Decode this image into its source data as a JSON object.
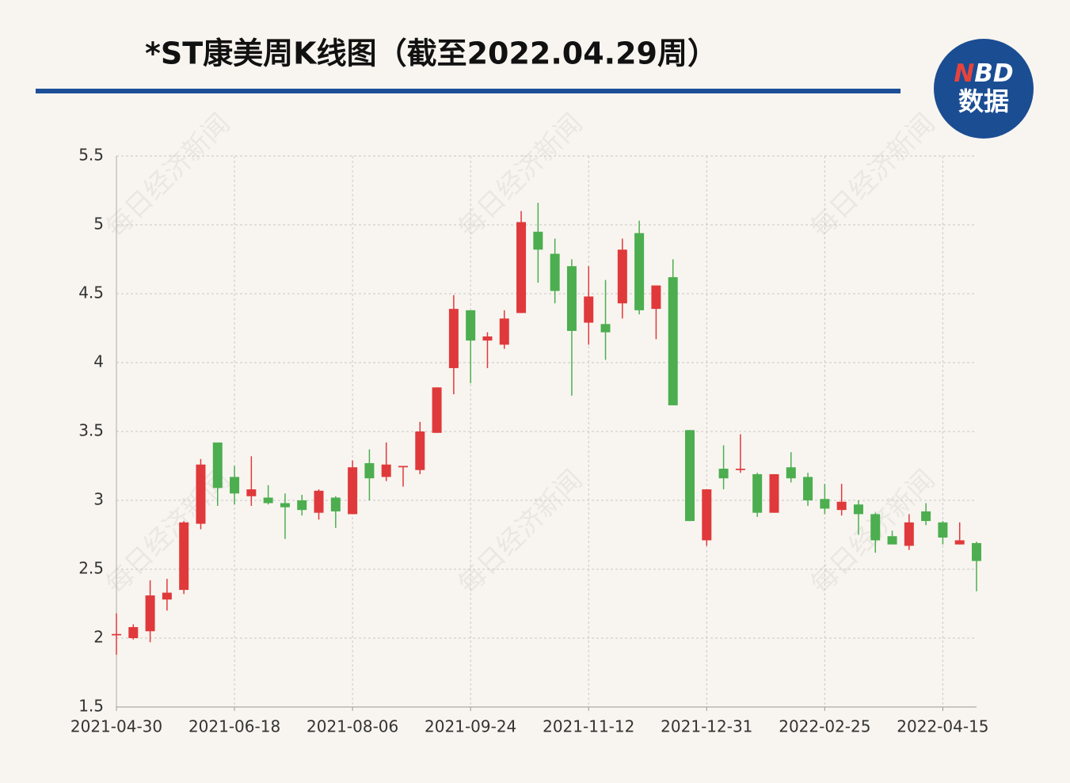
{
  "chart_data": {
    "type": "candlestick",
    "title": "*ST康美周K线图（截至2022.04.29周）",
    "logo": {
      "mark": "N",
      "rest": "BD",
      "sub": "数据"
    },
    "watermark": "每日经济新闻",
    "categories": [
      "2021-04-30",
      null,
      null,
      null,
      null,
      null,
      null,
      "2021-06-18",
      null,
      null,
      null,
      null,
      null,
      null,
      "2021-08-06",
      null,
      null,
      null,
      null,
      null,
      null,
      "2021-09-24",
      null,
      null,
      null,
      null,
      null,
      null,
      "2021-11-12",
      null,
      null,
      null,
      null,
      null,
      null,
      "2021-12-31",
      null,
      null,
      null,
      null,
      null,
      null,
      "2022-02-25",
      null,
      null,
      null,
      null,
      null,
      null,
      "2022-04-15",
      null,
      null
    ],
    "open": [
      2.02,
      2.0,
      2.05,
      2.28,
      2.35,
      2.83,
      3.42,
      3.17,
      3.03,
      3.02,
      2.98,
      3.0,
      2.91,
      3.02,
      2.9,
      3.27,
      3.17,
      3.24,
      3.22,
      3.49,
      3.96,
      4.38,
      4.16,
      4.13,
      4.36,
      4.95,
      4.79,
      4.7,
      4.29,
      4.28,
      4.43,
      4.94,
      4.39,
      4.62,
      3.51,
      2.71,
      3.23,
      3.22,
      3.19,
      2.91,
      3.24,
      3.17,
      3.01,
      2.93,
      2.97,
      2.9,
      2.74,
      2.67,
      2.92,
      2.84,
      2.68,
      2.69
    ],
    "high": [
      2.18,
      2.1,
      2.42,
      2.43,
      2.85,
      3.3,
      3.42,
      3.25,
      3.32,
      3.11,
      3.05,
      3.04,
      3.08,
      3.03,
      3.29,
      3.37,
      3.42,
      3.25,
      3.57,
      3.82,
      4.49,
      4.38,
      4.22,
      4.38,
      5.1,
      5.16,
      4.9,
      4.75,
      4.7,
      4.6,
      4.9,
      5.03,
      4.56,
      4.75,
      3.51,
      3.08,
      3.4,
      3.48,
      3.2,
      3.19,
      3.35,
      3.2,
      3.12,
      3.12,
      3.0,
      2.91,
      2.78,
      2.9,
      2.98,
      2.85,
      2.84,
      2.7
    ],
    "low": [
      1.88,
      1.99,
      1.97,
      2.2,
      2.32,
      2.79,
      2.96,
      2.97,
      2.96,
      2.97,
      2.72,
      2.89,
      2.86,
      2.8,
      2.9,
      3.0,
      3.14,
      3.1,
      3.19,
      3.49,
      3.77,
      3.85,
      3.96,
      4.1,
      4.36,
      4.58,
      4.43,
      3.76,
      4.13,
      4.02,
      4.32,
      4.35,
      4.17,
      3.69,
      2.85,
      2.67,
      3.08,
      3.2,
      2.88,
      2.91,
      3.13,
      2.96,
      2.9,
      2.89,
      2.75,
      2.62,
      2.68,
      2.64,
      2.82,
      2.68,
      2.68,
      2.34
    ],
    "close": [
      2.03,
      2.08,
      2.31,
      2.33,
      2.84,
      3.26,
      3.09,
      3.05,
      3.08,
      2.98,
      2.95,
      2.93,
      3.07,
      2.92,
      3.24,
      3.16,
      3.26,
      3.25,
      3.5,
      3.82,
      4.39,
      4.16,
      4.19,
      4.32,
      5.02,
      4.82,
      4.52,
      4.23,
      4.48,
      4.22,
      4.82,
      4.38,
      4.56,
      3.69,
      2.85,
      3.08,
      3.16,
      3.23,
      2.91,
      3.19,
      3.16,
      3.0,
      2.94,
      2.99,
      2.9,
      2.71,
      2.68,
      2.84,
      2.85,
      2.73,
      2.71,
      2.56
    ],
    "up_color": "#e0393b",
    "down_color": "#4cae4f",
    "ylim": [
      1.5,
      5.5
    ],
    "yticks": [
      1.5,
      2,
      2.5,
      3,
      3.5,
      4,
      4.5,
      5,
      5.5
    ],
    "grid": true
  }
}
